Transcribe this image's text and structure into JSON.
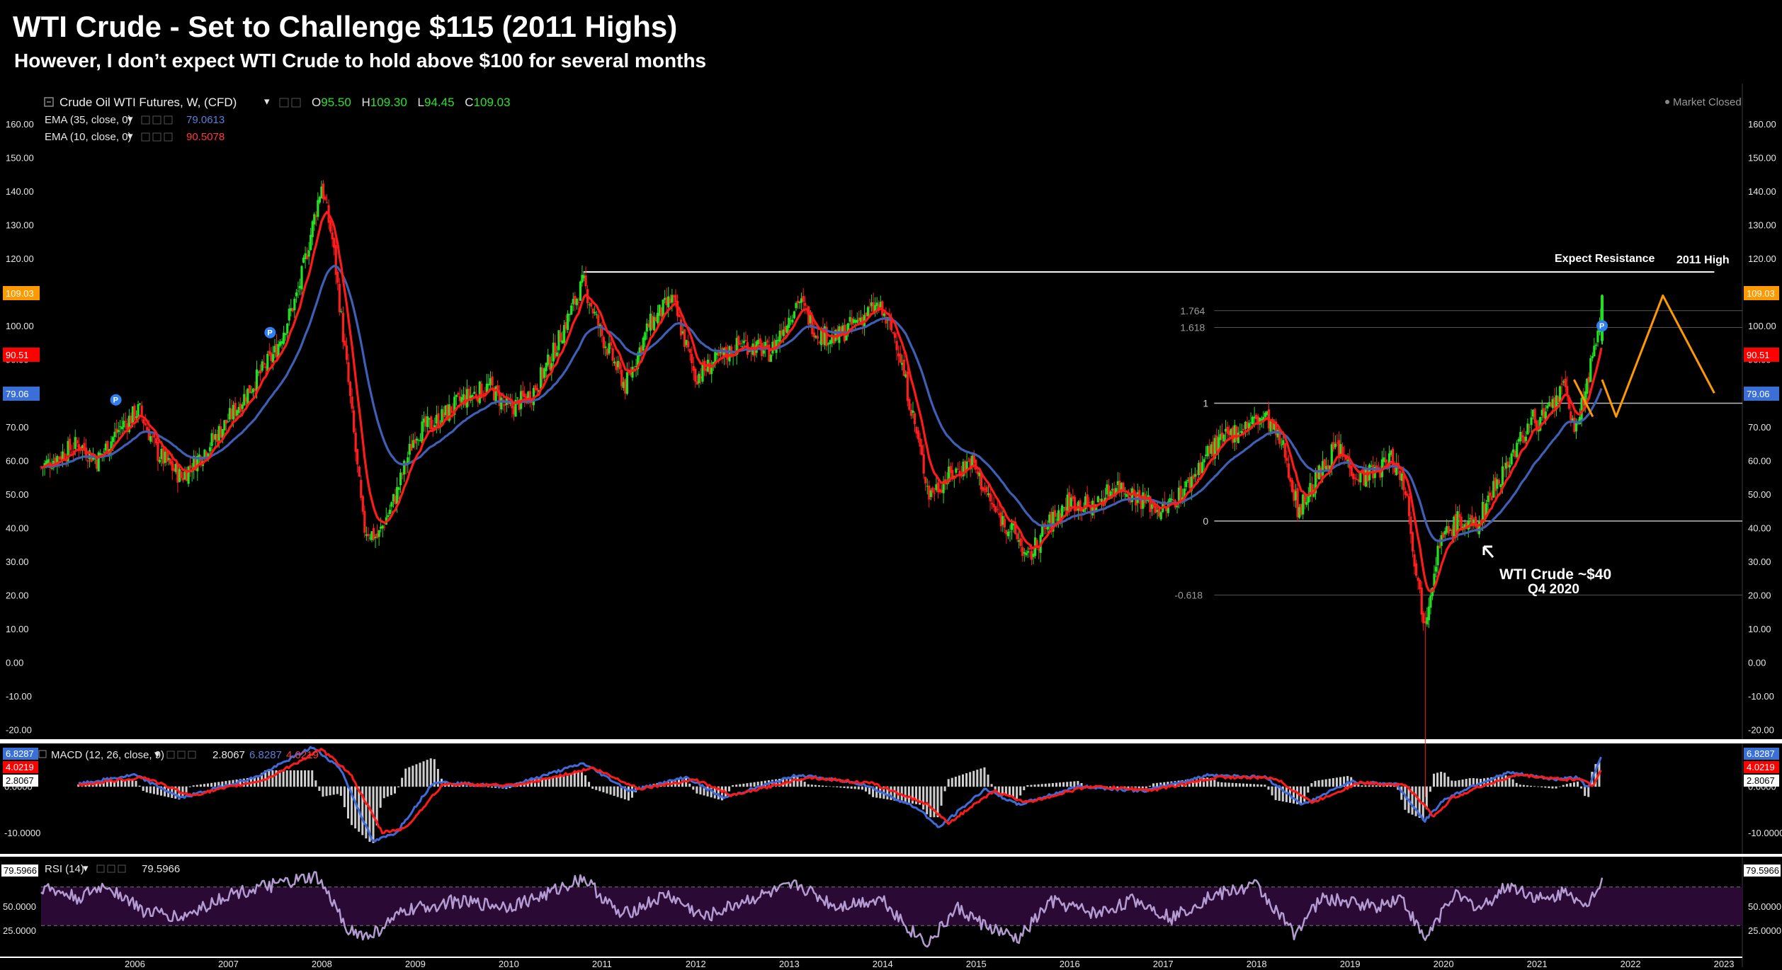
{
  "header": {
    "title": "WTI Crude - Set to Challenge $115 (2011 Highs)",
    "subtitle": "However, I don’t expect WTI Crude to hold above $100 for several months"
  },
  "legend": {
    "symbol": "Crude Oil WTI Futures, W, (CFD)",
    "ohlc": {
      "o_label": "O",
      "o": "95.50",
      "h_label": "H",
      "h": "109.30",
      "l_label": "L",
      "l": "94.45",
      "c_label": "C",
      "c": "109.03"
    },
    "ema35": {
      "label": "EMA (35, close, 0)",
      "value": "79.0613",
      "color": "#5b7fd8"
    },
    "ema10": {
      "label": "EMA (10, close, 0)",
      "value": "90.5078",
      "color": "#ff2a2a"
    },
    "market_status": "Market Closed",
    "macd": {
      "label": "MACD (12, 26, close, 9)",
      "hist": "2.8067",
      "macd": "6.8287",
      "signal": "4.0219"
    },
    "rsi": {
      "label": "RSI (14)",
      "value": "79.5966"
    }
  },
  "price_tags": {
    "last": "109.03",
    "ema10": "90.51",
    "ema35": "79.06"
  },
  "macd_tags": {
    "macd": "6.8287",
    "signal": "4.0219",
    "hist": "2.8067"
  },
  "rsi_tag": "79.5966",
  "annotations": {
    "resistance": "Expect Resistance",
    "high_2011": "2011 High",
    "wti_40_line1": "WTI Crude ~$40",
    "wti_40_line2": "Q4 2020",
    "fib_levels": [
      "1.764",
      "1.618",
      "1",
      "0",
      "-0.618"
    ]
  },
  "colors": {
    "up_candle": "#22e022",
    "down_candle": "#ff1e1e",
    "ema10": "#ff1a1a",
    "ema35": "#3f5fb5",
    "projection": "#ff9900",
    "rsi_line": "#b39ad0",
    "rsi_band": "#2a0a35",
    "last_price_tag": "#ff9900",
    "ema10_tag": "#ff0000",
    "ema35_tag": "#3a6fd8"
  },
  "chart_data": [
    {
      "type": "candlestick",
      "title": "Crude Oil WTI Futures, W, (CFD)",
      "ylim": [
        -22,
        172
      ],
      "y_ticks": [
        -20,
        -10,
        0,
        10,
        20,
        30,
        40,
        50,
        60,
        70,
        80,
        90,
        100,
        110,
        120,
        130,
        140,
        150,
        160
      ],
      "x_ticks": [
        "2006",
        "2007",
        "2008",
        "2009",
        "2010",
        "2011",
        "2012",
        "2013",
        "2014",
        "2015",
        "2016",
        "2017",
        "2018",
        "2019",
        "2020",
        "2021",
        "2022",
        "2023"
      ],
      "x_range": [
        2005.5,
        2023.7
      ],
      "close_path": [
        [
          2005.5,
          58
        ],
        [
          2005.9,
          65
        ],
        [
          2006.1,
          60
        ],
        [
          2006.35,
          70
        ],
        [
          2006.55,
          75
        ],
        [
          2006.75,
          62
        ],
        [
          2007.0,
          55
        ],
        [
          2007.25,
          63
        ],
        [
          2007.5,
          72
        ],
        [
          2007.75,
          82
        ],
        [
          2008.0,
          92
        ],
        [
          2008.25,
          110
        ],
        [
          2008.5,
          142
        ],
        [
          2008.62,
          125
        ],
        [
          2008.8,
          80
        ],
        [
          2008.95,
          40
        ],
        [
          2009.1,
          37
        ],
        [
          2009.3,
          50
        ],
        [
          2009.5,
          68
        ],
        [
          2009.75,
          72
        ],
        [
          2010.0,
          78
        ],
        [
          2010.3,
          82
        ],
        [
          2010.5,
          75
        ],
        [
          2010.75,
          80
        ],
        [
          2010.95,
          90
        ],
        [
          2011.1,
          100
        ],
        [
          2011.3,
          113
        ],
        [
          2011.5,
          97
        ],
        [
          2011.75,
          82
        ],
        [
          2012.0,
          100
        ],
        [
          2012.25,
          108
        ],
        [
          2012.5,
          85
        ],
        [
          2012.75,
          90
        ],
        [
          2013.0,
          95
        ],
        [
          2013.3,
          92
        ],
        [
          2013.6,
          108
        ],
        [
          2013.8,
          98
        ],
        [
          2014.0,
          96
        ],
        [
          2014.25,
          102
        ],
        [
          2014.45,
          106
        ],
        [
          2014.65,
          96
        ],
        [
          2014.85,
          70
        ],
        [
          2015.0,
          50
        ],
        [
          2015.2,
          55
        ],
        [
          2015.45,
          60
        ],
        [
          2015.7,
          45
        ],
        [
          2015.95,
          37
        ],
        [
          2016.05,
          30
        ],
        [
          2016.25,
          40
        ],
        [
          2016.5,
          48
        ],
        [
          2016.75,
          46
        ],
        [
          2017.0,
          53
        ],
        [
          2017.3,
          48
        ],
        [
          2017.5,
          45
        ],
        [
          2017.75,
          52
        ],
        [
          2018.0,
          63
        ],
        [
          2018.35,
          70
        ],
        [
          2018.6,
          73
        ],
        [
          2018.8,
          63
        ],
        [
          2018.95,
          45
        ],
        [
          2019.2,
          57
        ],
        [
          2019.35,
          64
        ],
        [
          2019.6,
          55
        ],
        [
          2019.8,
          57
        ],
        [
          2019.95,
          61
        ],
        [
          2020.1,
          52
        ],
        [
          2020.22,
          25
        ],
        [
          2020.3,
          12
        ],
        [
          2020.45,
          35
        ],
        [
          2020.65,
          42
        ],
        [
          2020.85,
          40
        ],
        [
          2021.0,
          50
        ],
        [
          2021.2,
          60
        ],
        [
          2021.45,
          72
        ],
        [
          2021.6,
          73
        ],
        [
          2021.8,
          82
        ],
        [
          2021.92,
          68
        ],
        [
          2022.05,
          85
        ],
        [
          2022.15,
          95
        ],
        [
          2022.2,
          109
        ]
      ],
      "low_spike": {
        "x": 2020.3,
        "low": -40
      },
      "ema10_color": "#ff1a1a",
      "ema35_color": "#3f5fb5",
      "horizontal_lines": [
        {
          "label": "2011 High",
          "y": 116,
          "x_start": 2011.3,
          "x_end": 2023.4,
          "color": "#ffffff"
        }
      ],
      "fibonacci": [
        {
          "level": "1.764",
          "y": 104.5
        },
        {
          "level": "1.618",
          "y": 99.5
        },
        {
          "level": "1",
          "y": 77
        },
        {
          "level": "0",
          "y": 42
        },
        {
          "level": "-0.618",
          "y": 20
        }
      ],
      "projection": [
        [
          2022.2,
          84
        ],
        [
          2022.35,
          73
        ],
        [
          2022.85,
          109
        ],
        [
          2023.4,
          80
        ]
      ],
      "projection_small": [
        [
          2021.9,
          84
        ],
        [
          2022.1,
          73
        ]
      ],
      "pivot_markers": [
        {
          "x": 2006.3,
          "y": 78
        },
        {
          "x": 2007.95,
          "y": 98
        },
        {
          "x": 2022.2,
          "y": 100
        }
      ]
    },
    {
      "type": "line",
      "title": "MACD (12, 26, close, 9)",
      "ylim": [
        -14,
        9
      ],
      "y_ticks": [
        -10,
        0
      ],
      "macd_path": [
        [
          2005.9,
          0.5
        ],
        [
          2006.5,
          2.5
        ],
        [
          2007.0,
          -2.5
        ],
        [
          2007.8,
          2
        ],
        [
          2008.4,
          8.5
        ],
        [
          2008.7,
          4
        ],
        [
          2009.05,
          -12
        ],
        [
          2009.3,
          -10
        ],
        [
          2009.7,
          1
        ],
        [
          2010.5,
          0
        ],
        [
          2011.3,
          5
        ],
        [
          2011.8,
          -1
        ],
        [
          2012.4,
          2
        ],
        [
          2012.8,
          -2.5
        ],
        [
          2013.6,
          2.5
        ],
        [
          2014.3,
          0.5
        ],
        [
          2014.9,
          -5
        ],
        [
          2015.1,
          -9
        ],
        [
          2015.6,
          -0.5
        ],
        [
          2015.95,
          -4
        ],
        [
          2016.6,
          0
        ],
        [
          2017.3,
          -1
        ],
        [
          2018.0,
          2.5
        ],
        [
          2018.6,
          2
        ],
        [
          2019.0,
          -4
        ],
        [
          2019.5,
          1
        ],
        [
          2020.0,
          0.5
        ],
        [
          2020.3,
          -7.5
        ],
        [
          2020.5,
          -3
        ],
        [
          2020.8,
          0
        ],
        [
          2021.2,
          3
        ],
        [
          2021.7,
          1.5
        ],
        [
          2021.95,
          2
        ],
        [
          2022.05,
          -0.5
        ],
        [
          2022.2,
          6.8
        ]
      ],
      "signal_path": [
        [
          2005.9,
          0.3
        ],
        [
          2006.6,
          2.0
        ],
        [
          2007.1,
          -2.0
        ],
        [
          2007.9,
          1.5
        ],
        [
          2008.5,
          8.0
        ],
        [
          2008.8,
          3
        ],
        [
          2009.15,
          -10
        ],
        [
          2009.4,
          -9
        ],
        [
          2009.8,
          0.5
        ],
        [
          2010.6,
          0.2
        ],
        [
          2011.4,
          4
        ],
        [
          2011.9,
          -0.5
        ],
        [
          2012.5,
          1.5
        ],
        [
          2012.9,
          -2
        ],
        [
          2013.7,
          2
        ],
        [
          2014.4,
          0.6
        ],
        [
          2015.0,
          -4
        ],
        [
          2015.2,
          -8
        ],
        [
          2015.7,
          -1
        ],
        [
          2016.05,
          -3.5
        ],
        [
          2016.7,
          0
        ],
        [
          2017.4,
          -0.8
        ],
        [
          2018.1,
          2
        ],
        [
          2018.7,
          1.8
        ],
        [
          2019.1,
          -3.5
        ],
        [
          2019.6,
          0.8
        ],
        [
          2020.1,
          0.3
        ],
        [
          2020.4,
          -6.5
        ],
        [
          2020.6,
          -2.5
        ],
        [
          2020.9,
          0
        ],
        [
          2021.3,
          2.5
        ],
        [
          2021.8,
          1.5
        ],
        [
          2022.0,
          1.5
        ],
        [
          2022.1,
          0
        ],
        [
          2022.2,
          4.0
        ]
      ]
    },
    {
      "type": "line",
      "title": "RSI (14)",
      "ylim": [
        0,
        100
      ],
      "y_ticks": [
        25,
        50
      ],
      "band": [
        30,
        70
      ],
      "rsi_path": [
        [
          2005.5,
          70
        ],
        [
          2005.9,
          58
        ],
        [
          2006.2,
          72
        ],
        [
          2006.6,
          45
        ],
        [
          2007.0,
          38
        ],
        [
          2007.5,
          62
        ],
        [
          2008.0,
          72
        ],
        [
          2008.45,
          80
        ],
        [
          2008.8,
          25
        ],
        [
          2009.0,
          18
        ],
        [
          2009.4,
          45
        ],
        [
          2009.9,
          55
        ],
        [
          2010.5,
          50
        ],
        [
          2010.9,
          62
        ],
        [
          2011.3,
          80
        ],
        [
          2011.7,
          40
        ],
        [
          2012.2,
          62
        ],
        [
          2012.6,
          38
        ],
        [
          2013.0,
          55
        ],
        [
          2013.6,
          72
        ],
        [
          2014.0,
          50
        ],
        [
          2014.5,
          58
        ],
        [
          2014.8,
          25
        ],
        [
          2015.0,
          12
        ],
        [
          2015.3,
          48
        ],
        [
          2015.6,
          30
        ],
        [
          2015.95,
          15
        ],
        [
          2016.3,
          55
        ],
        [
          2016.8,
          42
        ],
        [
          2017.2,
          57
        ],
        [
          2017.6,
          38
        ],
        [
          2018.0,
          60
        ],
        [
          2018.5,
          72
        ],
        [
          2018.9,
          22
        ],
        [
          2019.2,
          58
        ],
        [
          2019.8,
          50
        ],
        [
          2020.05,
          60
        ],
        [
          2020.3,
          15
        ],
        [
          2020.6,
          62
        ],
        [
          2020.9,
          48
        ],
        [
          2021.2,
          72
        ],
        [
          2021.6,
          55
        ],
        [
          2021.85,
          68
        ],
        [
          2022.0,
          45
        ],
        [
          2022.2,
          79.6
        ]
      ]
    }
  ]
}
